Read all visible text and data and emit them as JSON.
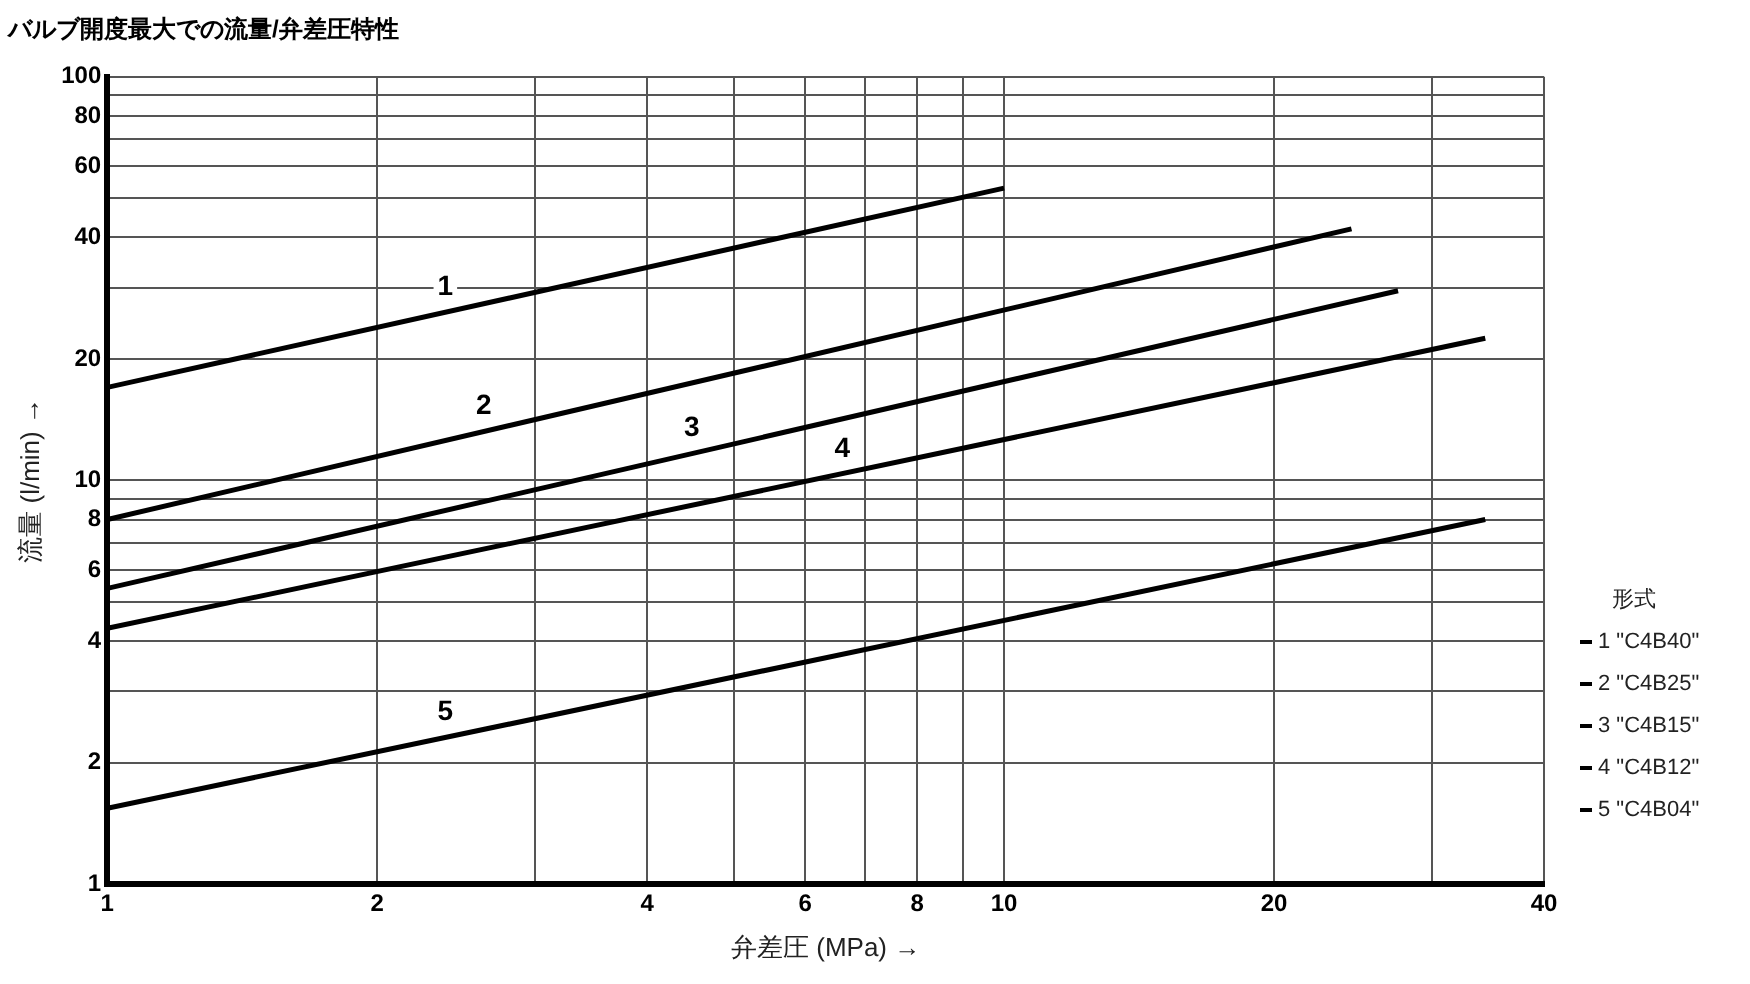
{
  "chart_data": {
    "type": "line",
    "title": "バルブ開度最大での流量/弁差圧特性",
    "xlabel": "弁差圧 (MPa) →",
    "ylabel": "流量 (l/min) →",
    "legend_title": "形式",
    "legend": "right",
    "log": "xy",
    "grid": true,
    "marker": "none",
    "line_style": "solid",
    "xlim": [
      1,
      40
    ],
    "ylim": [
      1,
      100
    ],
    "xticks": [
      1,
      2,
      {
        "value": 3,
        "label": null
      },
      4,
      {
        "value": 5,
        "label": null
      },
      6,
      {
        "value": 7,
        "label": null
      },
      8,
      {
        "value": 9,
        "label": null
      },
      10,
      20,
      {
        "value": 30,
        "label": null
      },
      40
    ],
    "yticks": [
      1,
      2,
      {
        "value": 3,
        "label": null
      },
      4,
      {
        "value": 5,
        "label": null
      },
      6,
      {
        "value": 7,
        "label": null
      },
      8,
      {
        "value": 9,
        "label": null
      },
      10,
      20,
      {
        "value": 30,
        "label": null
      },
      40,
      {
        "value": 50,
        "label": null
      },
      60,
      {
        "value": 70,
        "label": null
      },
      80,
      {
        "value": 90,
        "label": null
      },
      100
    ],
    "series": [
      {
        "name": "1 \"C4B40\"",
        "color": "#000000",
        "x": [
          1,
          10
        ],
        "values": [
          17,
          53
        ]
      },
      {
        "name": "2 \"C4B25\"",
        "color": "#000000",
        "x": [
          1,
          24.4
        ],
        "values": [
          8,
          42
        ]
      },
      {
        "name": "3 \"C4B15\"",
        "color": "#000000",
        "x": [
          1,
          27.5
        ],
        "values": [
          5.4,
          29.5
        ]
      },
      {
        "name": "4 \"C4B12\"",
        "color": "#000000",
        "x": [
          1,
          34.4
        ],
        "values": [
          4.3,
          22.5
        ]
      },
      {
        "name": "5 \"C4B04\"",
        "color": "#000000",
        "x": [
          1,
          34.4
        ],
        "values": [
          1.54,
          8
        ]
      }
    ],
    "annotations": [
      {
        "text": "1",
        "x": 2.31,
        "y": 25.7
      },
      {
        "text": "2",
        "x": 2.55,
        "y": 13
      },
      {
        "text": "3",
        "x": 4.35,
        "y": 11.5
      },
      {
        "text": "4",
        "x": 6.4,
        "y": 10.2
      },
      {
        "text": "5",
        "x": 2.31,
        "y": 2.27
      }
    ]
  }
}
